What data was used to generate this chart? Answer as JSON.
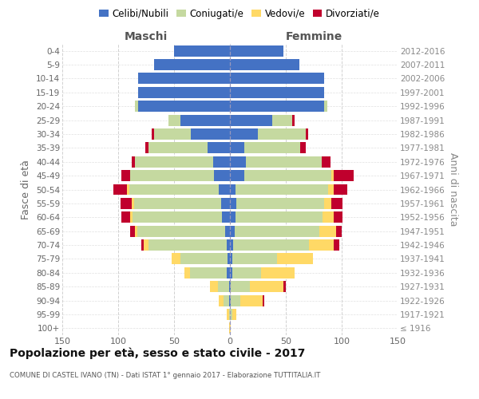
{
  "age_groups": [
    "100+",
    "95-99",
    "90-94",
    "85-89",
    "80-84",
    "75-79",
    "70-74",
    "65-69",
    "60-64",
    "55-59",
    "50-54",
    "45-49",
    "40-44",
    "35-39",
    "30-34",
    "25-29",
    "20-24",
    "15-19",
    "10-14",
    "5-9",
    "0-4"
  ],
  "birth_years": [
    "≤ 1916",
    "1917-1921",
    "1922-1926",
    "1927-1931",
    "1932-1936",
    "1937-1941",
    "1942-1946",
    "1947-1951",
    "1952-1956",
    "1957-1961",
    "1962-1966",
    "1967-1971",
    "1972-1976",
    "1977-1981",
    "1982-1986",
    "1987-1991",
    "1992-1996",
    "1997-2001",
    "2002-2006",
    "2007-2011",
    "2012-2016"
  ],
  "males": {
    "celibi": [
      0,
      0,
      1,
      1,
      3,
      2,
      3,
      4,
      7,
      8,
      10,
      14,
      15,
      20,
      35,
      44,
      82,
      82,
      82,
      68,
      50
    ],
    "coniugati": [
      0,
      1,
      5,
      10,
      33,
      42,
      70,
      79,
      80,
      78,
      80,
      75,
      70,
      53,
      33,
      11,
      3,
      0,
      0,
      0,
      0
    ],
    "vedovi": [
      1,
      2,
      4,
      7,
      5,
      8,
      4,
      2,
      2,
      2,
      2,
      0,
      0,
      0,
      0,
      0,
      0,
      0,
      0,
      0,
      0
    ],
    "divorziati": [
      0,
      0,
      0,
      0,
      0,
      0,
      2,
      4,
      8,
      10,
      12,
      8,
      3,
      3,
      2,
      0,
      0,
      0,
      0,
      0,
      0
    ]
  },
  "females": {
    "nubili": [
      0,
      0,
      1,
      1,
      2,
      2,
      3,
      4,
      5,
      6,
      5,
      13,
      14,
      13,
      25,
      38,
      84,
      84,
      84,
      62,
      48
    ],
    "coniugate": [
      0,
      2,
      8,
      17,
      26,
      40,
      68,
      76,
      78,
      78,
      83,
      78,
      68,
      50,
      43,
      18,
      3,
      0,
      0,
      0,
      0
    ],
    "vedove": [
      1,
      4,
      20,
      30,
      30,
      32,
      22,
      15,
      10,
      7,
      5,
      2,
      0,
      0,
      0,
      0,
      0,
      0,
      0,
      0,
      0
    ],
    "divorziate": [
      0,
      0,
      2,
      2,
      0,
      0,
      5,
      5,
      8,
      10,
      12,
      18,
      8,
      5,
      2,
      2,
      0,
      0,
      0,
      0,
      0
    ]
  },
  "colors": {
    "celibi": "#4472c4",
    "coniugati": "#c5d9a0",
    "vedovi": "#ffd966",
    "divorziati": "#c0002d"
  },
  "legend_labels": [
    "Celibi/Nubili",
    "Coniugati/e",
    "Vedovi/e",
    "Divorziati/e"
  ],
  "title": "Popolazione per età, sesso e stato civile - 2017",
  "subtitle": "COMUNE DI CASTEL IVANO (TN) - Dati ISTAT 1° gennaio 2017 - Elaborazione TUTTITALIA.IT",
  "xlabel_left": "Maschi",
  "xlabel_right": "Femmine",
  "ylabel_left": "Fasce di età",
  "ylabel_right": "Anni di nascita",
  "xlim": 150,
  "bg_color": "#ffffff",
  "grid_color": "#cccccc"
}
